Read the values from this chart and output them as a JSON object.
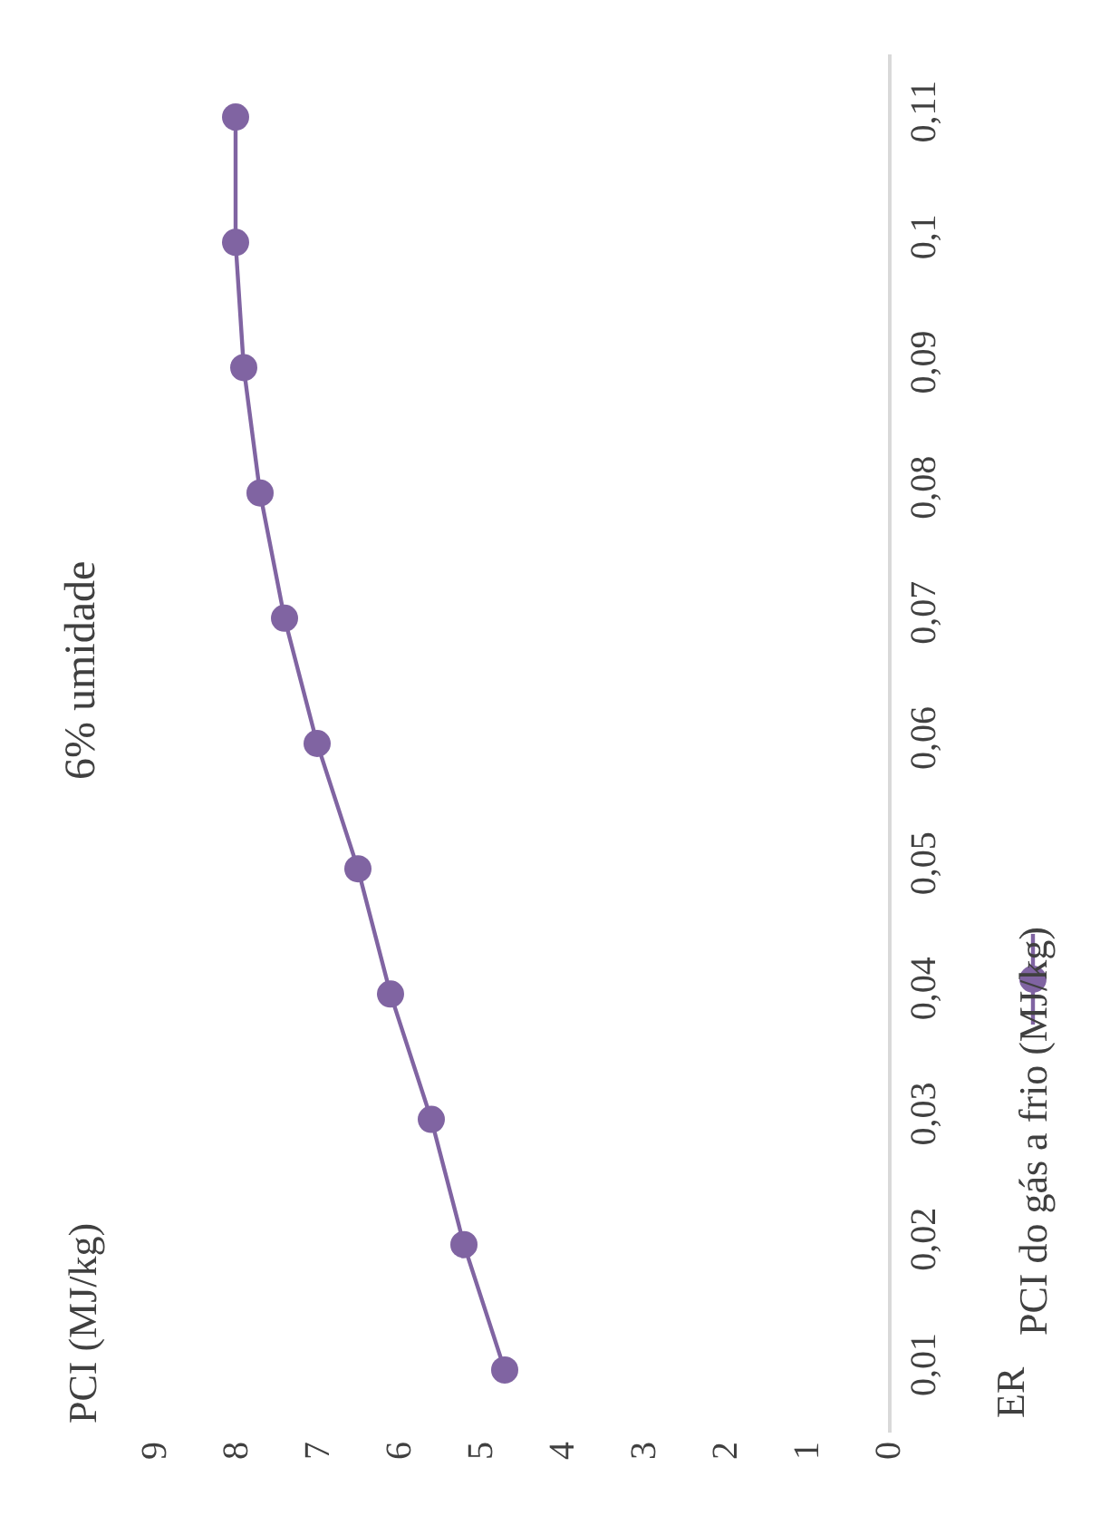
{
  "chart_data": {
    "type": "line",
    "title": "6% umidade",
    "ylabel": "ER",
    "annotations": [
      "PCI (MJ/kg)"
    ],
    "series": [
      {
        "name": "PCI do gás a frio (MJ/kg)",
        "color": "#8064a2",
        "x": [
          4.7,
          5.2,
          5.6,
          6.1,
          6.5,
          7.0,
          7.4,
          7.7,
          7.9,
          8.0,
          8.0
        ],
        "values": [
          0.01,
          0.02,
          0.03,
          0.04,
          0.05,
          0.06,
          0.07,
          0.08,
          0.09,
          0.1,
          0.11
        ]
      }
    ],
    "xlim": [
      9,
      0
    ],
    "xticks": [
      9,
      8,
      7,
      6,
      5,
      4,
      3,
      2,
      1,
      0
    ],
    "ylim": [
      0.005,
      0.115
    ],
    "yticks": [
      {
        "value": 0.01,
        "label": "0,01"
      },
      {
        "value": 0.02,
        "label": "0,02"
      },
      {
        "value": 0.03,
        "label": "0,03"
      },
      {
        "value": 0.04,
        "label": "0,04"
      },
      {
        "value": 0.05,
        "label": "0,05"
      },
      {
        "value": 0.06,
        "label": "0,06"
      },
      {
        "value": 0.07,
        "label": "0,07"
      },
      {
        "value": 0.08,
        "label": "0,08"
      },
      {
        "value": 0.09,
        "label": "0,09"
      },
      {
        "value": 0.1,
        "label": "0,1"
      },
      {
        "value": 0.11,
        "label": "0,11"
      }
    ],
    "marker": "circle",
    "line_style": "solid",
    "legend": "right"
  }
}
